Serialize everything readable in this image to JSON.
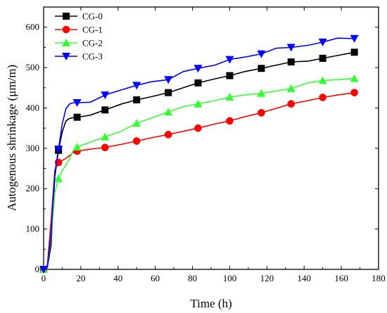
{
  "chart_data": {
    "type": "line",
    "title": "",
    "xlabel": "Time (h)",
    "ylabel": "Autogenous shrinkage (μm/m)",
    "xlim": [
      0,
      180
    ],
    "ylim": [
      0,
      650
    ],
    "x_ticks": [
      0,
      20,
      40,
      60,
      80,
      100,
      120,
      140,
      160,
      180
    ],
    "y_ticks": [
      0,
      100,
      200,
      300,
      400,
      500,
      600
    ],
    "x_tick_labels": [
      "0",
      "20",
      "40",
      "60",
      "80",
      "100",
      "120",
      "140",
      "160",
      "180"
    ],
    "y_tick_labels": [
      "0",
      "100",
      "200",
      "300",
      "400",
      "500",
      "600"
    ],
    "grid": false,
    "legend_position": "top-left",
    "series": [
      {
        "name": "CG-0",
        "color": "#000000",
        "marker": "square",
        "x": [
          0,
          2,
          4,
          6,
          8,
          10,
          12,
          14,
          16,
          18,
          25,
          33,
          42,
          50,
          58,
          67,
          75,
          83,
          92,
          100,
          108,
          117,
          125,
          133,
          142,
          150,
          158,
          167,
          168
        ],
        "y": [
          0,
          5,
          60,
          230,
          295,
          340,
          368,
          374,
          376,
          377,
          382,
          395,
          410,
          420,
          428,
          438,
          450,
          462,
          472,
          480,
          490,
          498,
          506,
          514,
          516,
          523,
          530,
          538,
          540
        ]
      },
      {
        "name": "CG-1",
        "color": "#ff0000",
        "marker": "circle",
        "x": [
          0,
          2,
          4,
          6,
          8,
          10,
          12,
          14,
          16,
          18,
          25,
          33,
          42,
          50,
          58,
          67,
          75,
          83,
          92,
          100,
          108,
          117,
          125,
          133,
          142,
          150,
          158,
          167,
          168
        ],
        "y": [
          0,
          10,
          120,
          245,
          265,
          270,
          275,
          282,
          290,
          293,
          298,
          302,
          310,
          318,
          326,
          334,
          342,
          350,
          360,
          368,
          378,
          388,
          399,
          410,
          418,
          426,
          432,
          438,
          440
        ]
      },
      {
        "name": "CG-2",
        "color": "#33ff33",
        "marker": "triangle-up",
        "x": [
          0,
          2,
          4,
          6,
          8,
          10,
          12,
          14,
          16,
          18,
          25,
          33,
          42,
          50,
          58,
          67,
          75,
          83,
          92,
          100,
          108,
          117,
          125,
          133,
          142,
          150,
          158,
          167,
          168
        ],
        "y": [
          0,
          5,
          80,
          190,
          225,
          245,
          258,
          275,
          295,
          303,
          315,
          328,
          343,
          362,
          375,
          390,
          403,
          410,
          418,
          427,
          432,
          436,
          442,
          448,
          462,
          468,
          470,
          473,
          475
        ]
      },
      {
        "name": "CG-3",
        "color": "#0000ff",
        "marker": "triangle-down",
        "x": [
          0,
          2,
          4,
          6,
          8,
          10,
          12,
          14,
          16,
          18,
          25,
          33,
          42,
          50,
          58,
          67,
          75,
          83,
          92,
          100,
          108,
          117,
          125,
          133,
          142,
          150,
          158,
          167,
          168
        ],
        "y": [
          0,
          5,
          90,
          240,
          298,
          360,
          398,
          410,
          413,
          413,
          414,
          432,
          445,
          456,
          465,
          470,
          490,
          498,
          506,
          520,
          526,
          534,
          548,
          550,
          555,
          563,
          573,
          572,
          570
        ]
      }
    ]
  }
}
